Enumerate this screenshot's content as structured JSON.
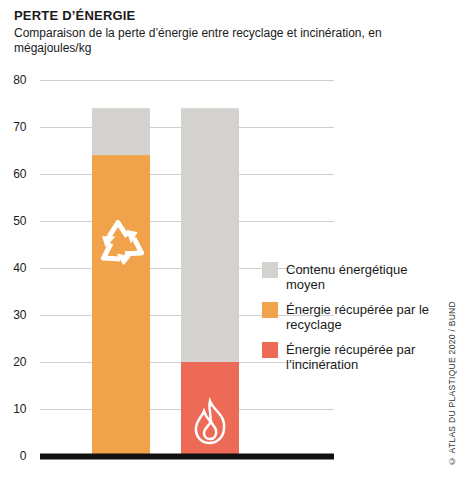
{
  "chart_data": {
    "type": "bar",
    "title": "PERTE D’ÉNERGIE",
    "subtitle": "Comparaison de la perte d’énergie entre recyclage et incinération, en mégajoules/kg",
    "source": "© ATLAS DU PLASTIQUE 2020 / BUND",
    "categories": [
      null,
      null
    ],
    "series": [
      {
        "name": "Contenu énergétique moyen",
        "color": "#d3d2ce",
        "values": [
          74,
          74
        ]
      },
      {
        "name": "Énergie récupérée par le recyclage",
        "color": "#f0a34b",
        "values": [
          64,
          null
        ]
      },
      {
        "name": "Énergie récupérée par l’incinération",
        "color": "#ec6a56",
        "values": [
          null,
          20
        ]
      }
    ],
    "ylim": [
      0,
      80
    ],
    "yticks": [
      0,
      10,
      20,
      30,
      40,
      50,
      60,
      70,
      80
    ],
    "grid": true,
    "legend": "right",
    "stacked": false,
    "tick_labels": "y"
  }
}
